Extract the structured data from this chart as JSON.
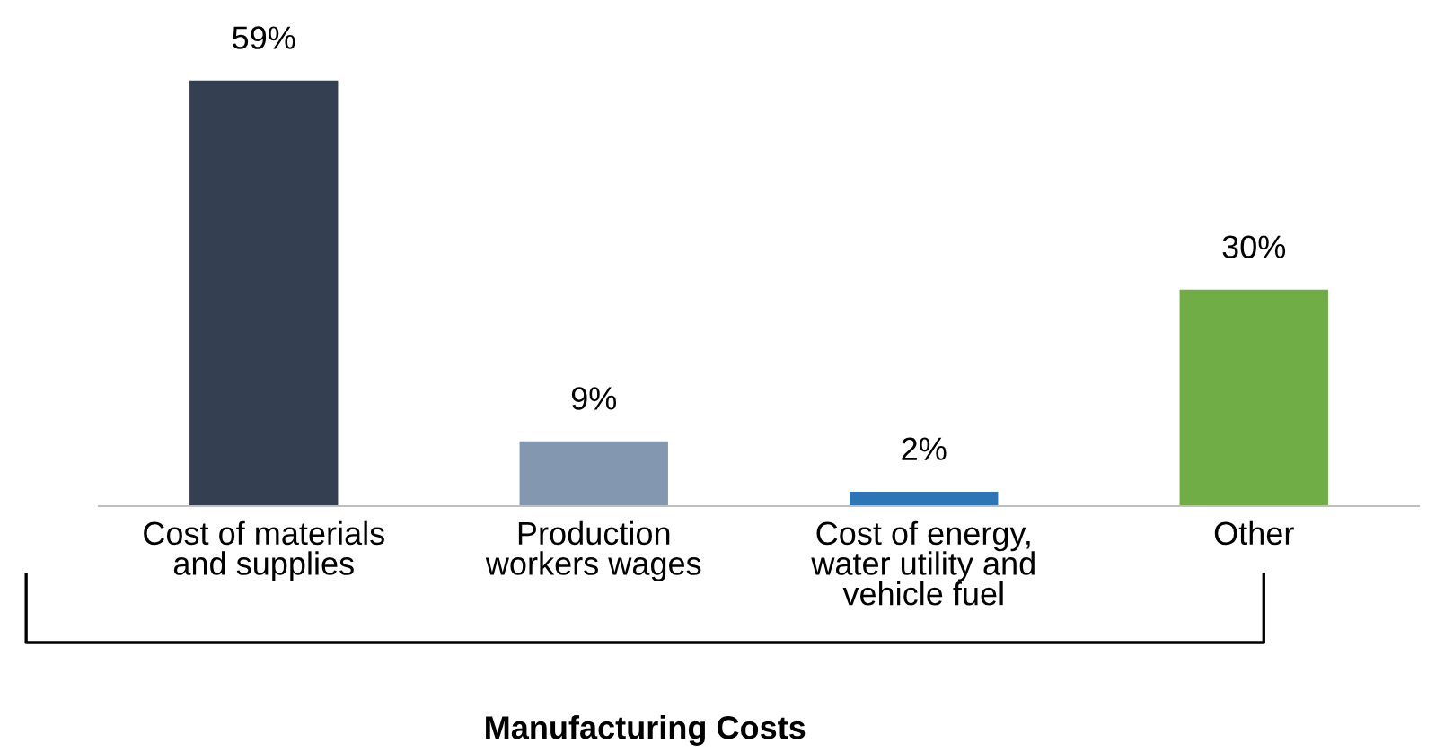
{
  "chart_data": {
    "type": "bar",
    "categories": [
      "Cost of materials\nand supplies",
      "Production\nworkers wages",
      "Cost of energy,\nwater utility and\nvehicle fuel",
      "Other"
    ],
    "values": [
      59,
      9,
      2,
      30
    ],
    "colors": [
      "#353f52",
      "#8497b0",
      "#2e75b6",
      "#70ad47"
    ],
    "value_labels": [
      "59%",
      "9%",
      "2%",
      "30%"
    ],
    "annotations": [
      "Manufacturing Costs"
    ],
    "grid": false,
    "legend": false
  }
}
